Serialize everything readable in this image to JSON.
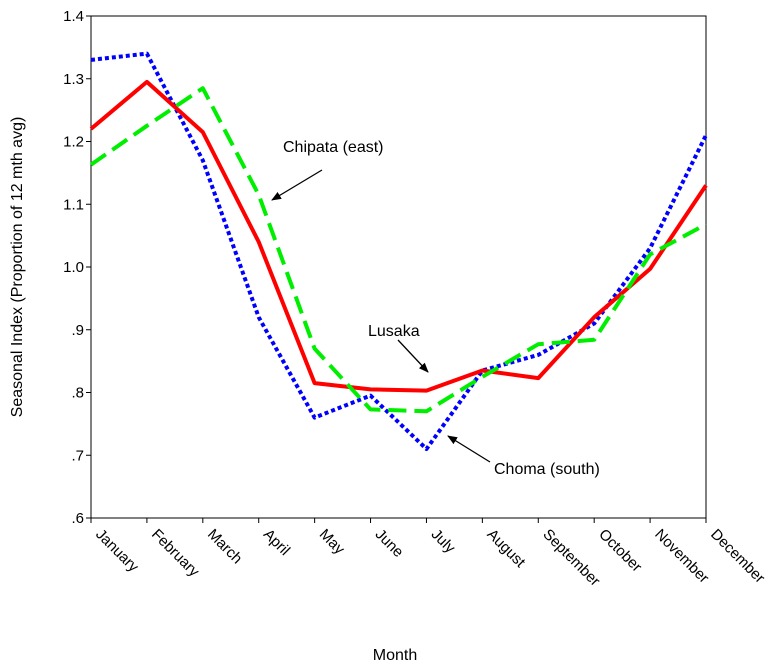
{
  "chart_data": {
    "type": "line",
    "title": "",
    "xlabel": "Month",
    "ylabel": "Seasonal Index (Proportion of 12 mth avg)",
    "categories": [
      "January",
      "February",
      "March",
      "April",
      "May",
      "June",
      "July",
      "August",
      "September",
      "October",
      "November",
      "December"
    ],
    "ylim": [
      0.6,
      1.4
    ],
    "yticks": [
      {
        "value": 0.6,
        "label": ".6"
      },
      {
        "value": 0.7,
        "label": ".7"
      },
      {
        "value": 0.8,
        "label": ".8"
      },
      {
        "value": 0.9,
        "label": ".9"
      },
      {
        "value": 1.0,
        "label": "1.0"
      },
      {
        "value": 1.1,
        "label": "1.1"
      },
      {
        "value": 1.2,
        "label": "1.2"
      },
      {
        "value": 1.3,
        "label": "1.3"
      },
      {
        "value": 1.4,
        "label": "1.4"
      }
    ],
    "grid": false,
    "legend": "none",
    "series": [
      {
        "key": "choma",
        "color": "#0000FF",
        "style": "dotted",
        "values": [
          1.33,
          1.34,
          1.17,
          0.92,
          0.76,
          0.795,
          0.71,
          0.835,
          0.86,
          0.91,
          1.03,
          1.21
        ]
      },
      {
        "key": "lusaka",
        "color": "#FF0000",
        "style": "solid",
        "values": [
          1.22,
          1.295,
          1.215,
          1.04,
          0.815,
          0.805,
          0.803,
          0.835,
          0.823,
          0.92,
          0.997,
          1.13
        ]
      },
      {
        "key": "chipata",
        "color": "#00EE00",
        "style": "dashed",
        "values": [
          1.163,
          1.225,
          1.285,
          1.115,
          0.87,
          0.773,
          0.77,
          0.825,
          0.877,
          0.884,
          1.02,
          1.068
        ]
      }
    ],
    "annotations": [
      {
        "key": "chipata",
        "text": "Chipata (east)"
      },
      {
        "key": "lusaka",
        "text": "Lusaka"
      },
      {
        "key": "choma",
        "text": "Choma (south)"
      }
    ]
  }
}
